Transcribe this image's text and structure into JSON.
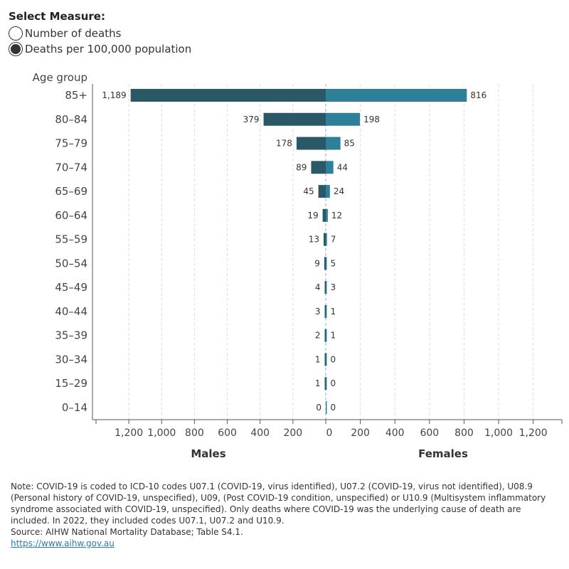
{
  "filter": {
    "title": "Select Measure:",
    "options": [
      {
        "label": "Number of deaths",
        "selected": false
      },
      {
        "label": "Deaths per 100,000 population",
        "selected": true
      }
    ]
  },
  "chart_data": {
    "type": "bar",
    "orientation": "horizontal-butterfly",
    "row_header": "Age group",
    "categories": [
      "85+",
      "80–84",
      "75–79",
      "70–74",
      "65–69",
      "60–64",
      "55–59",
      "50–54",
      "45–49",
      "40–44",
      "35–39",
      "30–34",
      "15–29",
      "0–14"
    ],
    "series": [
      {
        "name": "Males",
        "color": "#2a5866",
        "values": [
          1189,
          379,
          178,
          89,
          45,
          19,
          13,
          9,
          4,
          3,
          2,
          1,
          1,
          0
        ],
        "labels": [
          "1,189",
          "379",
          "178",
          "89",
          "45",
          "19",
          "13",
          "9",
          "4",
          "3",
          "2",
          "1",
          "1",
          "0"
        ]
      },
      {
        "name": "Females",
        "color": "#2e7f9a",
        "values": [
          816,
          198,
          85,
          44,
          24,
          12,
          7,
          5,
          3,
          1,
          1,
          0,
          0,
          0
        ],
        "labels": [
          "816",
          "198",
          "85",
          "44",
          "24",
          "12",
          "7",
          "5",
          "3",
          "1",
          "1",
          "0",
          "0",
          "0"
        ]
      }
    ],
    "xticks": [
      0,
      200,
      400,
      600,
      800,
      1000,
      1200
    ],
    "xtick_labels": [
      "0",
      "200",
      "400",
      "600",
      "800",
      "1,000",
      "1,200"
    ],
    "xlim_males": [
      0,
      1400
    ],
    "xlim_females": [
      0,
      1366
    ],
    "grid": true
  },
  "notes": {
    "note": "Note: COVID-19 is coded to ICD-10 codes U07.1 (COVID-19, virus identified), U07.2 (COVID-19, virus not identified), U08.9 (Personal history of COVID-19, unspecified), U09, (Post COVID-19 condition, unspecified) or U10.9 (Multisystem inflammatory syndrome associated with COVID-19, unspecified). Only deaths where COVID-19 was the underlying cause of death are included. In 2022, they included codes U07.1, U07.2 and U10.9.",
    "source": "Source: AIHW National Mortality Database; Table S4.1.",
    "link": "https://www.aihw.gov.au"
  }
}
